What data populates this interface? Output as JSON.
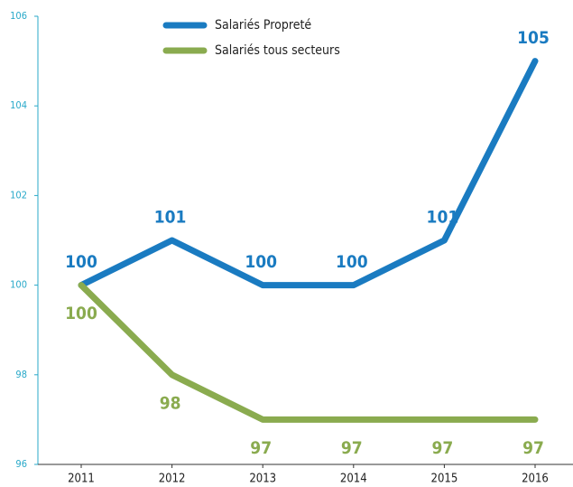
{
  "chart_data": {
    "type": "line",
    "categories": [
      "2011",
      "2012",
      "2013",
      "2014",
      "2015",
      "2016"
    ],
    "series": [
      {
        "name": "Salariés Propreté",
        "color": "#1a7bc1",
        "values": [
          100,
          101,
          100,
          100,
          101,
          105
        ]
      },
      {
        "name": "Salariés tous secteurs",
        "color": "#8aab4f",
        "values": [
          100,
          98,
          97,
          97,
          97,
          97
        ]
      }
    ],
    "ylim": [
      96,
      106
    ],
    "yticks": [
      96,
      98,
      100,
      102,
      104,
      106
    ],
    "grid": false,
    "legend": "top"
  }
}
